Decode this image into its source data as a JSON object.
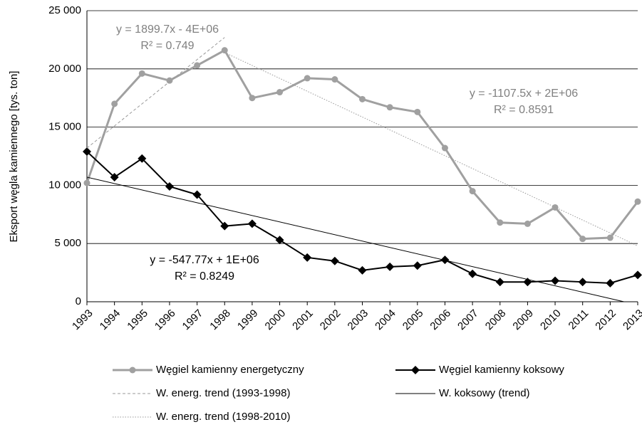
{
  "chart_data": {
    "type": "line",
    "y_label": "Eksport węgla kamiennego [tys. ton]",
    "xlim": [
      1993,
      2013
    ],
    "xticks": [
      1993,
      1994,
      1995,
      1996,
      1997,
      1998,
      1999,
      2000,
      2001,
      2002,
      2003,
      2004,
      2005,
      2006,
      2007,
      2008,
      2009,
      2010,
      2011,
      2012,
      2013
    ],
    "ylim": [
      0,
      25000
    ],
    "yticks": [
      0,
      {
        "value": 5000,
        "label": "5 000"
      },
      {
        "value": 10000,
        "label": "10 000"
      },
      {
        "value": 15000,
        "label": "15 000"
      },
      {
        "value": 20000,
        "label": "20 000"
      },
      {
        "value": 25000,
        "label": "25 000"
      }
    ],
    "grid": true,
    "legend": "bottom",
    "series": [
      {
        "name": "Węgiel kamienny energetyczny",
        "color": "#a0a0a0",
        "style": "solid-circle",
        "x": [
          1993,
          1994,
          1995,
          1996,
          1997,
          1998,
          1999,
          2000,
          2001,
          2002,
          2003,
          2004,
          2005,
          2006,
          2007,
          2008,
          2009,
          2010,
          2011,
          2012,
          2013
        ],
        "values": [
          10200,
          17000,
          19600,
          19000,
          20300,
          21600,
          17500,
          18000,
          19200,
          19100,
          17400,
          16700,
          16300,
          13200,
          9500,
          6800,
          6700,
          8100,
          5400,
          5500,
          8600
        ]
      },
      {
        "name": "Węgiel kamienny koksowy",
        "color": "#000000",
        "style": "solid-diamond",
        "x": [
          1993,
          1994,
          1995,
          1996,
          1997,
          1998,
          1999,
          2000,
          2001,
          2002,
          2003,
          2004,
          2005,
          2006,
          2007,
          2008,
          2009,
          2010,
          2011,
          2012,
          2013
        ],
        "values": [
          12900,
          10700,
          12300,
          9900,
          9200,
          6500,
          6700,
          5300,
          3800,
          3500,
          2700,
          3000,
          3100,
          3600,
          2400,
          1700,
          1700,
          1800,
          1700,
          1600,
          2300
        ]
      },
      {
        "name": "W. energ. trend (1993-1998)",
        "color": "#999999",
        "style": "dashed",
        "x": [
          1993,
          1998
        ],
        "values": [
          13200,
          22700
        ]
      },
      {
        "name": "W. koksowy (trend)",
        "color": "#000000",
        "style": "thin",
        "x": [
          1993,
          2012.5
        ],
        "values": [
          10700,
          0
        ]
      },
      {
        "name": "W. energ. trend (1998-2010)",
        "color": "#999999",
        "style": "dotted",
        "x": [
          1998,
          2013
        ],
        "values": [
          21400,
          4800
        ]
      }
    ],
    "annotations": [
      {
        "lines": [
          "y = 1899.7x - 4E+06",
          "R² = 0.749"
        ],
        "color": "#808080"
      },
      {
        "lines": [
          "y = -1107.5x + 2E+06",
          "R² = 0.8591"
        ],
        "color": "#808080"
      },
      {
        "lines": [
          "y = -547.77x + 1E+06",
          "R² = 0.8249"
        ],
        "color": "#000000"
      }
    ]
  }
}
